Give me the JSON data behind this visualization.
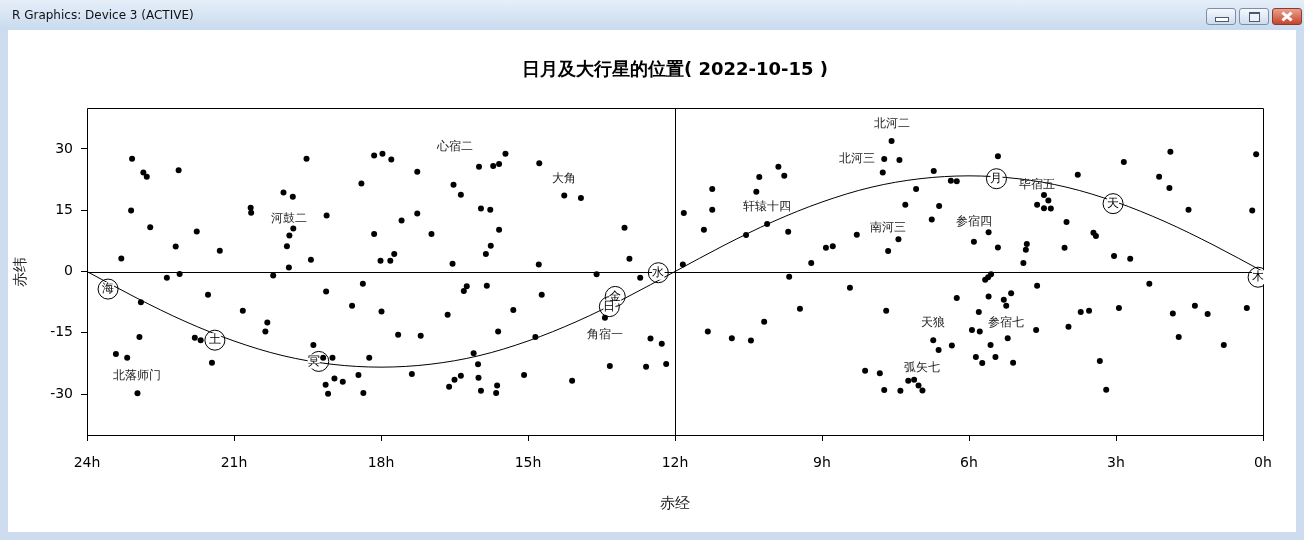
{
  "chart_data": {
    "type": "scatter",
    "title": "日月及大行星的位置( 2022-10-15 )",
    "xlabel": "赤经",
    "ylabel": "赤纬",
    "xlim": [
      24,
      0
    ],
    "xticks": [
      {
        "value": 24,
        "label": "24h"
      },
      {
        "value": 21,
        "label": "21h"
      },
      {
        "value": 18,
        "label": "18h"
      },
      {
        "value": 15,
        "label": "15h"
      },
      {
        "value": 12,
        "label": "12h"
      },
      {
        "value": 9,
        "label": "9h"
      },
      {
        "value": 6,
        "label": "6h"
      },
      {
        "value": 3,
        "label": "3h"
      },
      {
        "value": 0,
        "label": "0h"
      }
    ],
    "ylim": [
      -40,
      40
    ],
    "yticks": [
      -30,
      -15,
      0,
      15,
      30
    ],
    "ref_lines": [
      {
        "axis": "y",
        "value": 0,
        "color": "#000000"
      },
      {
        "axis": "x",
        "value": 12,
        "color": "#000000"
      }
    ],
    "annotations": [
      "R Graphics: Device 3 (ACTIVE)",
      "心宿二",
      {
        "text": "北落师门",
        "x": 22.97,
        "y": -29.8
      },
      {
        "text": "河鼓二",
        "x": 19.87,
        "y": 8.8
      },
      {
        "text": "大角",
        "x": 14.26,
        "y": 18.6
      },
      {
        "text": "角宿一",
        "x": 13.43,
        "y": -11.3
      },
      {
        "text": "轩辕十四",
        "x": 10.12,
        "y": 11.6
      },
      {
        "text": "北河二",
        "x": 7.58,
        "y": 31.9
      },
      {
        "text": "北河三",
        "x": 7.73,
        "y": 27.5
      },
      {
        "text": "南河三",
        "x": 7.65,
        "y": 5.0
      },
      {
        "text": "参宿四",
        "x": 5.9,
        "y": 7.3
      },
      {
        "text": "毕宿五",
        "x": 4.61,
        "y": 16.3
      },
      {
        "text": "参宿七",
        "x": 5.24,
        "y": -8.4
      },
      {
        "text": "天狼",
        "x": 6.73,
        "y": -16.8
      },
      {
        "text": "弧矢七",
        "x": 6.95,
        "y": -29.1
      }
    ],
    "series": [
      {
        "type": "scatter",
        "color": "#000000",
        "marker": "circle",
        "x": [
          23.08,
          22.85,
          22.78,
          22.13,
          19.52,
          23.1,
          22.71,
          21.76,
          22.19,
          21.29,
          23.3,
          20.66,
          20.65,
          19.99,
          19.8,
          19.11,
          19.79,
          19.87,
          19.92,
          19.43,
          19.88,
          22.11,
          22.37,
          20.2,
          19.12,
          21.53,
          22.9,
          20.82,
          20.32,
          20.36,
          22.93,
          21.8,
          21.68,
          23.41,
          23.18,
          21.45,
          19.38,
          19.18,
          19.13,
          19.08,
          22.97,
          18.14,
          17.97,
          17.79,
          18.4,
          17.26,
          17.58,
          18.14,
          17.26,
          16.97,
          17.73,
          18.01,
          17.81,
          16.52,
          16.37,
          16.0,
          15.71,
          15.59,
          15.46,
          14.77,
          15.96,
          15.77,
          15.59,
          15.76,
          15.86,
          16.54,
          14.78,
          14.26,
          18.37,
          18.59,
          17.99,
          17.65,
          17.19,
          16.64,
          16.25,
          16.31,
          15.84,
          15.3,
          14.72,
          15.61,
          14.85,
          18.24,
          18.99,
          18.95,
          18.78,
          18.46,
          18.36,
          17.37,
          16.61,
          16.5,
          16.37,
          16.02,
          16.01,
          15.96,
          15.65,
          15.63,
          15.08,
          16.11,
          13.92,
          13.03,
          12.93,
          13.6,
          12.71,
          13.43,
          12.5,
          12.27,
          13.33,
          12.59,
          12.18,
          14.1,
          11.82,
          11.24,
          11.24,
          11.41,
          11.84,
          10.28,
          9.89,
          9.77,
          10.34,
          10.12,
          10.55,
          9.69,
          9.67,
          9.45,
          10.18,
          11.33,
          10.84,
          10.45,
          7.73,
          7.42,
          7.76,
          6.72,
          7.08,
          7.3,
          6.61,
          6.76,
          6.37,
          6.25,
          5.41,
          4.61,
          4.38,
          4.47,
          5.9,
          5.41,
          5.6,
          4.82,
          4.84,
          4.89,
          7.65,
          7.44,
          8.29,
          8.92,
          8.78,
          9.22,
          8.43,
          7.69,
          6.25,
          5.67,
          5.61,
          5.55,
          5.6,
          5.14,
          5.29,
          5.24,
          5.8,
          4.61,
          4.63,
          5.94,
          5.78,
          5.21,
          5.56,
          5.46,
          5.86,
          5.73,
          5.1,
          6.73,
          6.62,
          6.35,
          8.12,
          7.82,
          7.12,
          7.24,
          7.03,
          6.95,
          7.4,
          7.73,
          3.78,
          2.84,
          1.89,
          2.12,
          1.91,
          0.14,
          0.22,
          1.52,
          4.01,
          3.46,
          3.41,
          4.05,
          3.04,
          2.71,
          4.47,
          4.33,
          2.32,
          3.72,
          3.55,
          2.94,
          3.97,
          1.84,
          1.39,
          1.13,
          0.33,
          1.72,
          0.8,
          3.33,
          3.2,
          7.58
        ],
        "values": [
          27.6,
          24.2,
          23.2,
          24.8,
          27.6,
          14.9,
          10.8,
          9.8,
          6.1,
          5.1,
          3.2,
          15.6,
          14.4,
          19.3,
          18.3,
          13.7,
          10.5,
          8.8,
          6.2,
          2.9,
          1.0,
          -0.6,
          -1.5,
          -1.0,
          -4.9,
          -5.7,
          -7.5,
          -9.6,
          -12.5,
          -14.7,
          -16.0,
          -16.2,
          -16.8,
          -20.2,
          -21.1,
          -22.3,
          -18.0,
          -21.1,
          -27.7,
          -29.9,
          -29.8,
          28.4,
          28.8,
          27.4,
          21.5,
          24.4,
          12.5,
          9.2,
          14.2,
          9.2,
          4.3,
          2.6,
          2.6,
          21.2,
          18.8,
          25.6,
          25.8,
          26.3,
          28.8,
          26.5,
          15.4,
          15.1,
          10.2,
          6.3,
          4.3,
          1.9,
          1.7,
          18.6,
          -3.0,
          -8.4,
          -9.8,
          -15.5,
          -15.7,
          -10.6,
          -3.6,
          -4.8,
          -3.5,
          -9.4,
          -5.7,
          -14.7,
          -16.0,
          -21.1,
          -21.1,
          -26.2,
          -27.0,
          -25.3,
          -29.7,
          -25.1,
          -28.2,
          -26.5,
          -25.5,
          -22.7,
          -26.0,
          -29.2,
          -29.7,
          -27.9,
          -25.3,
          -20.0,
          18.0,
          10.7,
          3.1,
          -0.7,
          -1.5,
          -11.3,
          -16.4,
          -17.7,
          -23.1,
          -23.3,
          -22.6,
          -26.7,
          14.3,
          20.2,
          15.1,
          10.2,
          1.7,
          23.1,
          25.6,
          23.4,
          19.5,
          11.6,
          8.9,
          9.7,
          -1.3,
          -9.1,
          -12.3,
          -14.7,
          -16.3,
          -16.9,
          27.5,
          27.3,
          24.2,
          24.6,
          20.2,
          16.3,
          16.0,
          12.7,
          22.2,
          22.1,
          28.2,
          16.3,
          17.4,
          15.5,
          7.3,
          5.9,
          9.6,
          6.7,
          5.3,
          2.1,
          5.0,
          7.9,
          9.0,
          5.8,
          6.2,
          2.1,
          -4.0,
          -9.6,
          -6.5,
          -2.0,
          -1.4,
          -0.7,
          -6.1,
          -5.3,
          -6.9,
          -8.4,
          -9.9,
          -3.5,
          -14.3,
          -14.3,
          -14.7,
          -16.3,
          -18.0,
          -20.9,
          -20.9,
          -22.4,
          -22.3,
          -16.8,
          -19.2,
          -18.1,
          -24.3,
          -24.9,
          -26.5,
          -26.7,
          -27.9,
          -29.1,
          -29.2,
          -29.0,
          23.7,
          26.8,
          29.3,
          23.2,
          20.4,
          28.7,
          14.9,
          15.1,
          12.1,
          9.5,
          8.7,
          5.8,
          3.8,
          3.1,
          18.7,
          15.4,
          -3.0,
          -9.9,
          -9.6,
          -8.9,
          -13.5,
          -10.3,
          -8.4,
          -10.4,
          -8.9,
          -16.0,
          -18.0,
          -21.9,
          -28.9,
          31.9
        ]
      },
      {
        "type": "line",
        "color": "#000000",
        "line_style": "solid",
        "x": [
          24,
          23,
          22,
          21,
          20,
          19,
          18,
          17,
          16,
          15,
          14,
          13,
          12,
          11,
          10,
          9,
          8,
          7,
          6,
          5,
          4,
          3,
          2,
          1,
          0
        ],
        "values": [
          0,
          -6.4,
          -12.2,
          -17.0,
          -20.6,
          -22.7,
          -23.4,
          -22.7,
          -20.6,
          -17.0,
          -12.2,
          -6.4,
          0,
          6.4,
          12.2,
          17.0,
          20.6,
          22.7,
          23.4,
          22.7,
          20.6,
          17.0,
          12.2,
          6.4,
          0
        ]
      },
      {
        "type": "scatter",
        "color": "#000000",
        "marker": "circle",
        "x": [
          23.57,
          21.39,
          19.27,
          13.22,
          13.34,
          12.34,
          5.44,
          3.06,
          0.1
        ],
        "values": [
          -4.3,
          -16.8,
          -22.0,
          -6.1,
          -8.6,
          -0.3,
          22.7,
          16.6,
          -1.4
        ],
        "value_labels": [
          "海",
          "土",
          "冥",
          "金",
          "日",
          "水",
          "月",
          "天",
          "木"
        ]
      }
    ]
  }
}
